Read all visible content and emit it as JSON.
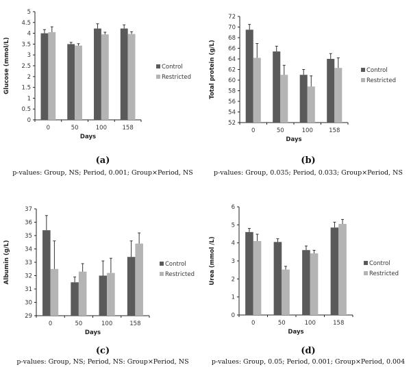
{
  "colors": {
    "control": "#5a5a5a",
    "restricted": "#b4b4b4",
    "axis": "#222222",
    "error": "#333333"
  },
  "legend": [
    "Control",
    "Restricted"
  ],
  "chart_data": [
    {
      "id": "a",
      "type": "bar",
      "panel_label": "(a)",
      "pvalues": "p-values: Group, NS; Period, 0.001; Group×Period, NS",
      "xlabel": "Days",
      "ylabel": "Glucose (mmol/L)",
      "categories": [
        "0",
        "50",
        "100",
        "158"
      ],
      "ylim": [
        0,
        5
      ],
      "yticks": [
        "0",
        "0.5",
        "1",
        "1.5",
        "2",
        "2.5",
        "3",
        "3.5",
        "4",
        "4.5",
        "5"
      ],
      "ytick_values": [
        0,
        0.5,
        1,
        1.5,
        2,
        2.5,
        3,
        3.5,
        4,
        4.5,
        5
      ],
      "series": [
        {
          "name": "Control",
          "values": [
            4.0,
            3.5,
            4.22,
            4.22
          ],
          "errors": [
            0.17,
            0.08,
            0.22,
            0.17
          ]
        },
        {
          "name": "Restricted",
          "values": [
            4.05,
            3.43,
            3.95,
            3.97
          ],
          "errors": [
            0.25,
            0.09,
            0.1,
            0.1
          ]
        }
      ]
    },
    {
      "id": "b",
      "type": "bar",
      "panel_label": "(b)",
      "pvalues": "p-values: Group, 0.035; Period, 0.033; Group×Period, NS",
      "xlabel": "Days",
      "ylabel": "Total protein (g/L)",
      "categories": [
        "0",
        "50",
        "100",
        "158"
      ],
      "ylim": [
        52,
        72
      ],
      "yticks": [
        "52",
        "54",
        "56",
        "58",
        "60",
        "62",
        "64",
        "66",
        "68",
        "70",
        "72"
      ],
      "ytick_values": [
        52,
        54,
        56,
        58,
        60,
        62,
        64,
        66,
        68,
        70,
        72
      ],
      "series": [
        {
          "name": "Control",
          "values": [
            69.5,
            65.4,
            61.0,
            64.0
          ],
          "errors": [
            1.0,
            1.0,
            1.0,
            1.0
          ]
        },
        {
          "name": "Restricted",
          "values": [
            64.2,
            61.0,
            58.8,
            62.3
          ],
          "errors": [
            2.7,
            1.8,
            2.0,
            1.9
          ]
        }
      ]
    },
    {
      "id": "c",
      "type": "bar",
      "panel_label": "(c)",
      "pvalues": "p-values: Group, NS; Period, NS: Group×Period, NS",
      "xlabel": "Days",
      "ylabel": "Albumin (g/L)",
      "categories": [
        "0",
        "50",
        "100",
        "158"
      ],
      "ylim": [
        29,
        37
      ],
      "yticks": [
        "29",
        "30",
        "31",
        "32",
        "33",
        "34",
        "35",
        "36",
        "37"
      ],
      "ytick_values": [
        29,
        30,
        31,
        32,
        33,
        34,
        35,
        36,
        37
      ],
      "series": [
        {
          "name": "Control",
          "values": [
            35.4,
            31.5,
            32.0,
            33.4
          ],
          "errors": [
            1.1,
            0.4,
            1.1,
            1.2
          ]
        },
        {
          "name": "Restricted",
          "values": [
            32.5,
            32.3,
            32.2,
            34.4
          ],
          "errors": [
            2.1,
            0.6,
            1.1,
            0.8
          ]
        }
      ]
    },
    {
      "id": "d",
      "type": "bar",
      "panel_label": "(d)",
      "pvalues": "p-values: Group, 0.05; Period, 0.001; Group×Period, 0.004",
      "xlabel": "Days",
      "ylabel": "Urea (mmol /L)",
      "categories": [
        "0",
        "50",
        "100",
        "158"
      ],
      "ylim": [
        0,
        6
      ],
      "yticks": [
        "0",
        "1",
        "2",
        "3",
        "4",
        "5",
        "6"
      ],
      "ytick_values": [
        0,
        1,
        2,
        3,
        4,
        5,
        6
      ],
      "series": [
        {
          "name": "Control",
          "values": [
            4.6,
            4.05,
            3.6,
            4.85
          ],
          "errors": [
            0.2,
            0.18,
            0.23,
            0.3
          ]
        },
        {
          "name": "Restricted",
          "values": [
            4.1,
            2.52,
            3.42,
            5.05
          ],
          "errors": [
            0.38,
            0.18,
            0.17,
            0.25
          ]
        }
      ]
    }
  ]
}
